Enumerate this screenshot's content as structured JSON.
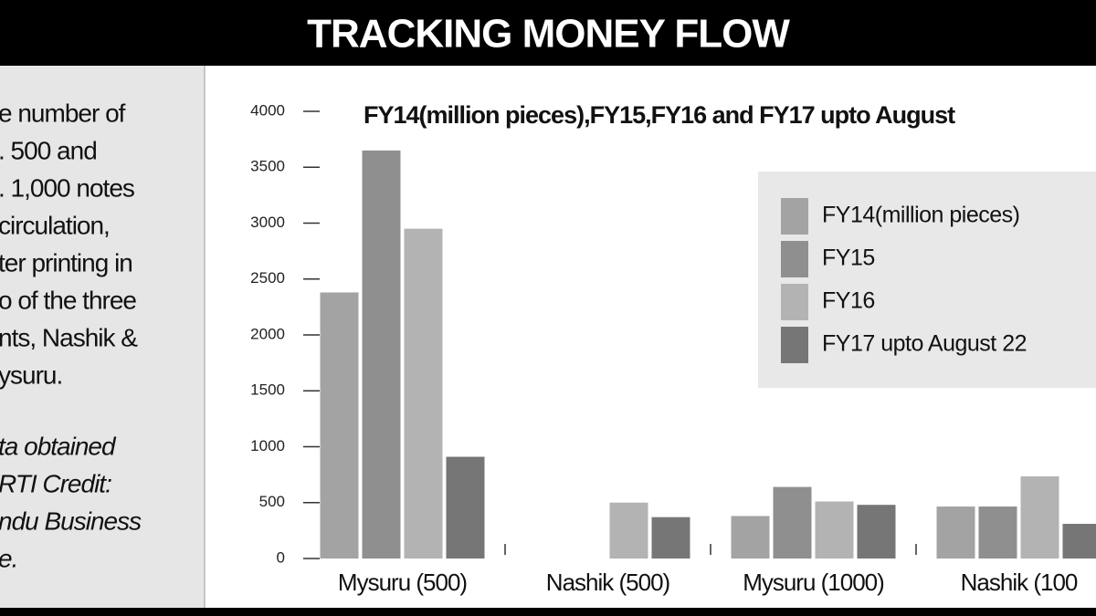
{
  "header": {
    "title": "TRACKING MONEY FLOW"
  },
  "sidebar": {
    "lines": [
      "e number of",
      ". 500 and",
      ". 1,000 notes",
      "circulation,",
      "ter printing in",
      "o of the three",
      "nts, Nashik &",
      "ysuru."
    ],
    "note_lines": [
      "ta obtained",
      "RTI Credit:",
      "ndu Business",
      "e."
    ]
  },
  "chart_data": {
    "type": "bar",
    "title": "FY14(million pieces),FY15,FY16 and FY17 upto August",
    "categories": [
      "Mysuru (500)",
      "Nashik (500)",
      "Mysuru (1000)",
      "Nashik (100"
    ],
    "series": [
      {
        "name": "FY14(million pieces)",
        "color": "#a3a3a3",
        "values": [
          2380,
          0,
          380,
          465
        ]
      },
      {
        "name": "FY15",
        "color": "#8f8f8f",
        "values": [
          3650,
          0,
          640,
          465
        ]
      },
      {
        "name": "FY16",
        "color": "#b3b3b3",
        "values": [
          2950,
          500,
          510,
          735
        ]
      },
      {
        "name": "FY17 upto August 22",
        "color": "#767676",
        "values": [
          910,
          370,
          480,
          310
        ]
      }
    ],
    "ylim": [
      0,
      4000
    ],
    "yticks": [
      0,
      500,
      1000,
      1500,
      2000,
      2500,
      3000,
      3500,
      4000
    ],
    "legend": "upper right",
    "grid": false
  }
}
